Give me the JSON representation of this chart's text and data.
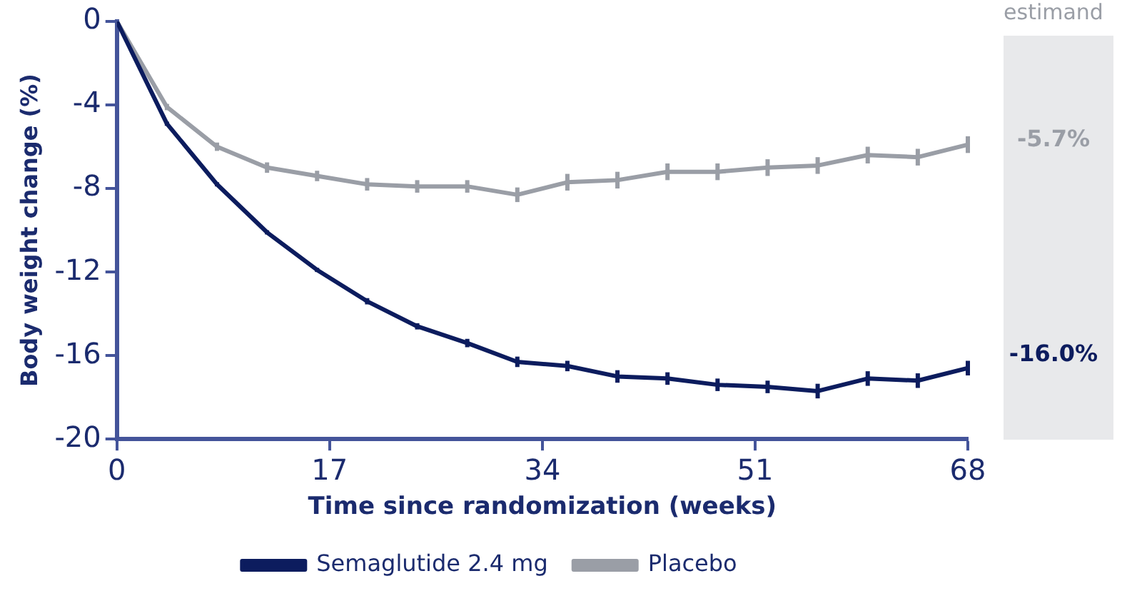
{
  "chart_data": {
    "type": "line",
    "xlabel": "Time since randomization (weeks)",
    "ylabel": "Body weight change (%)",
    "x": [
      0,
      4,
      8,
      12,
      16,
      20,
      24,
      28,
      32,
      36,
      40,
      44,
      48,
      52,
      56,
      60,
      64,
      68
    ],
    "series": [
      {
        "name": "Semaglutide 2.4 mg",
        "color": "#0c1c5e",
        "values": [
          0,
          -4.9,
          -7.8,
          -10.1,
          -11.9,
          -13.4,
          -14.6,
          -15.4,
          -16.3,
          -16.5,
          -17.0,
          -17.1,
          -17.4,
          -17.5,
          -17.7,
          -17.1,
          -17.2,
          -16.6
        ],
        "errors": [
          null,
          0.1,
          0.1,
          0.1,
          0.1,
          0.15,
          0.15,
          0.2,
          0.25,
          0.25,
          0.3,
          0.3,
          0.3,
          0.3,
          0.35,
          0.35,
          0.35,
          0.35
        ]
      },
      {
        "name": "Placebo",
        "color": "#9a9ea6",
        "values": [
          0,
          -4.1,
          -6.0,
          -7.0,
          -7.4,
          -7.8,
          -7.9,
          -7.9,
          -8.3,
          -7.7,
          -7.6,
          -7.2,
          -7.2,
          -7.0,
          -6.9,
          -6.4,
          -6.5,
          -5.9
        ],
        "errors": [
          null,
          0.15,
          0.2,
          0.25,
          0.25,
          0.3,
          0.3,
          0.3,
          0.35,
          0.4,
          0.4,
          0.4,
          0.4,
          0.4,
          0.4,
          0.4,
          0.4,
          0.4
        ]
      }
    ],
    "xlim": [
      0,
      68
    ],
    "xticks": [
      0,
      17,
      34,
      51,
      68
    ],
    "ylim": [
      -20,
      0
    ],
    "yticks": [
      0,
      -4,
      -8,
      -12,
      -16,
      -20
    ],
    "grid": false,
    "legend": "bottom",
    "marker": "none",
    "line_style": "solid",
    "annotations": [
      "estimand",
      {
        "text": "-5.7%",
        "x": 68,
        "y": -5.7
      },
      {
        "text": "-16.0%",
        "x": 68,
        "y": -16.0
      }
    ]
  }
}
